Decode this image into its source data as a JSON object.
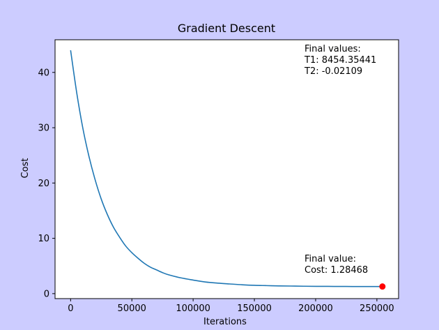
{
  "figure_background": "#ccccff",
  "chart_data": {
    "type": "line",
    "title": "Gradient Descent",
    "xlabel": "Iterations",
    "ylabel": "Cost",
    "xlim": [
      -12700,
      267700
    ],
    "ylim": [
      -0.9,
      45.9
    ],
    "x_ticks": [
      0,
      50000,
      100000,
      150000,
      200000,
      250000
    ],
    "y_ticks": [
      0,
      10,
      20,
      30,
      40
    ],
    "grid": false,
    "line_color": "#1f77b4",
    "marker_color": "#ff0000",
    "series": [
      {
        "x": [
          0,
          5000,
          10000,
          15000,
          20000,
          25000,
          30000,
          35000,
          40000,
          45000,
          50000,
          55000,
          60000,
          65000,
          70000,
          75000,
          80000,
          90000,
          100000,
          110000,
          120000,
          130000,
          140000,
          150000,
          160000,
          170000,
          180000,
          190000,
          200000,
          210000,
          220000,
          230000,
          240000,
          250000,
          254500
        ],
        "y": [
          44.0,
          36.3,
          29.9,
          24.8,
          20.6,
          17.1,
          14.3,
          12.0,
          10.2,
          8.6,
          7.4,
          6.4,
          5.5,
          4.8,
          4.3,
          3.8,
          3.4,
          2.85,
          2.45,
          2.1,
          1.9,
          1.75,
          1.6,
          1.5,
          1.45,
          1.4,
          1.37,
          1.34,
          1.32,
          1.31,
          1.3,
          1.29,
          1.287,
          1.285,
          1.28468
        ]
      }
    ],
    "final_point": {
      "x": 254500,
      "y": 1.28468
    },
    "annotations": {
      "params": [
        "Final values:",
        "T1: 8454.35441",
        "T2: -0.02109"
      ],
      "cost": [
        "Final value:",
        "Cost: 1.28468"
      ]
    }
  }
}
